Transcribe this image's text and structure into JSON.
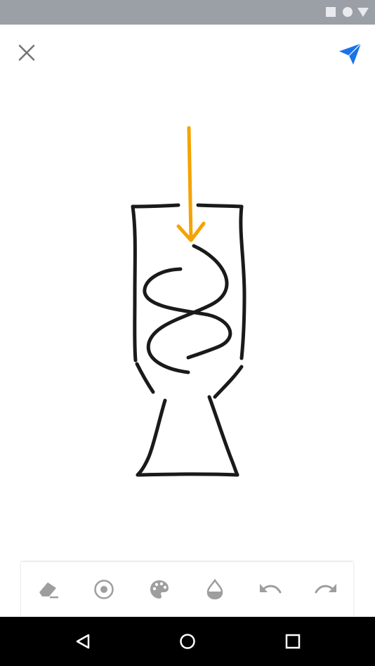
{
  "status_bar": {
    "icons": [
      "square-status-icon",
      "circle-status-icon",
      "triangle-status-icon"
    ]
  },
  "app_bar": {
    "close_icon": "close-icon",
    "send_icon": "send-icon"
  },
  "colors": {
    "status_bar_bg": "#9aa0a6",
    "stroke_black": "#1a1a1a",
    "stroke_orange": "#f4a300",
    "send_blue": "#1a73e8",
    "toolbar_icon_gray": "#9e9e9e",
    "nav_bar_bg": "#000000"
  },
  "toolbar": {
    "tools": [
      "eraser-icon",
      "pen-size-icon",
      "palette-icon",
      "opacity-icon",
      "undo-icon",
      "redo-icon"
    ]
  },
  "nav_bar": {
    "buttons": [
      "back-icon",
      "home-icon",
      "recents-icon"
    ]
  }
}
